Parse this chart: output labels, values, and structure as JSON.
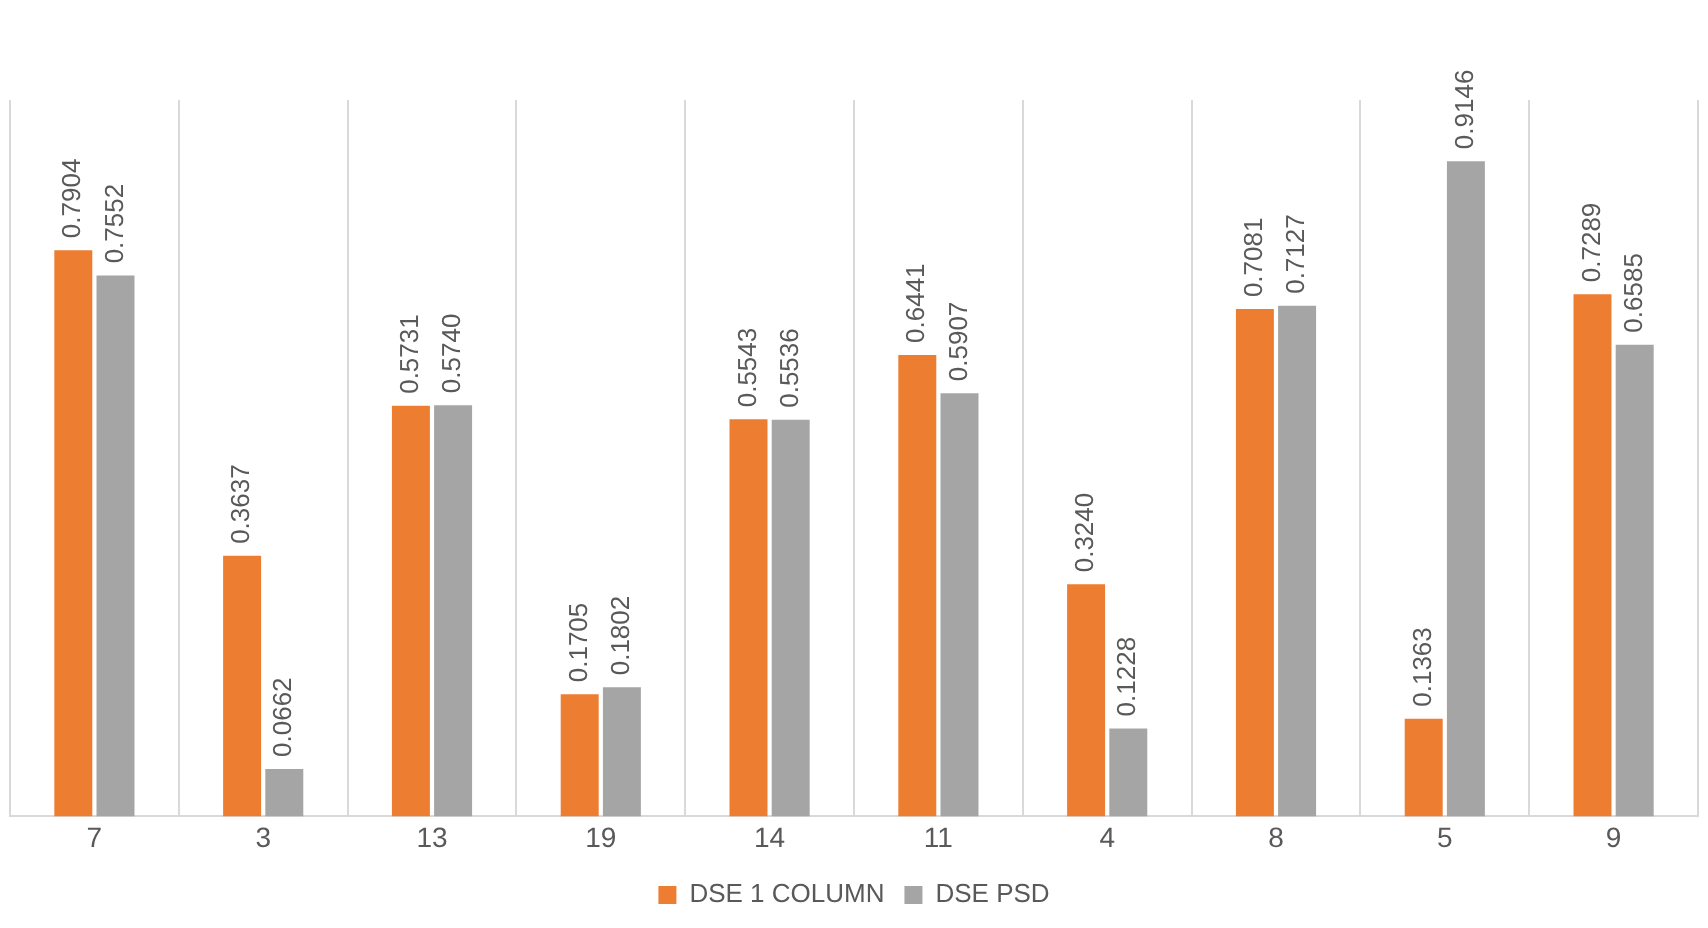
{
  "chart_data": {
    "type": "bar",
    "categories": [
      "7",
      "3",
      "13",
      "19",
      "14",
      "11",
      "4",
      "8",
      "5",
      "9"
    ],
    "series": [
      {
        "name": "DSE 1 COLUMN",
        "color": "#ed7d31",
        "values": [
          0.7904,
          0.3637,
          0.5731,
          0.1705,
          0.5543,
          0.6441,
          0.324,
          0.7081,
          0.1363,
          0.7289
        ],
        "value_labels": [
          "0.7904",
          "0.3637",
          "0.5731",
          "0.1705",
          "0.5543",
          "0.6441",
          "0.3240",
          "0.7081",
          "0.1363",
          "0.7289"
        ]
      },
      {
        "name": "DSE PSD",
        "color": "#a5a5a5",
        "values": [
          0.7552,
          0.0662,
          0.574,
          0.1802,
          0.5536,
          0.5907,
          0.1228,
          0.7127,
          0.9146,
          0.6585
        ],
        "value_labels": [
          "0.7552",
          "0.0662",
          "0.5740",
          "0.1802",
          "0.5536",
          "0.5907",
          "0.1228",
          "0.7127",
          "0.9146",
          "0.6585"
        ]
      }
    ],
    "grid": "x",
    "legend": "bottom"
  }
}
